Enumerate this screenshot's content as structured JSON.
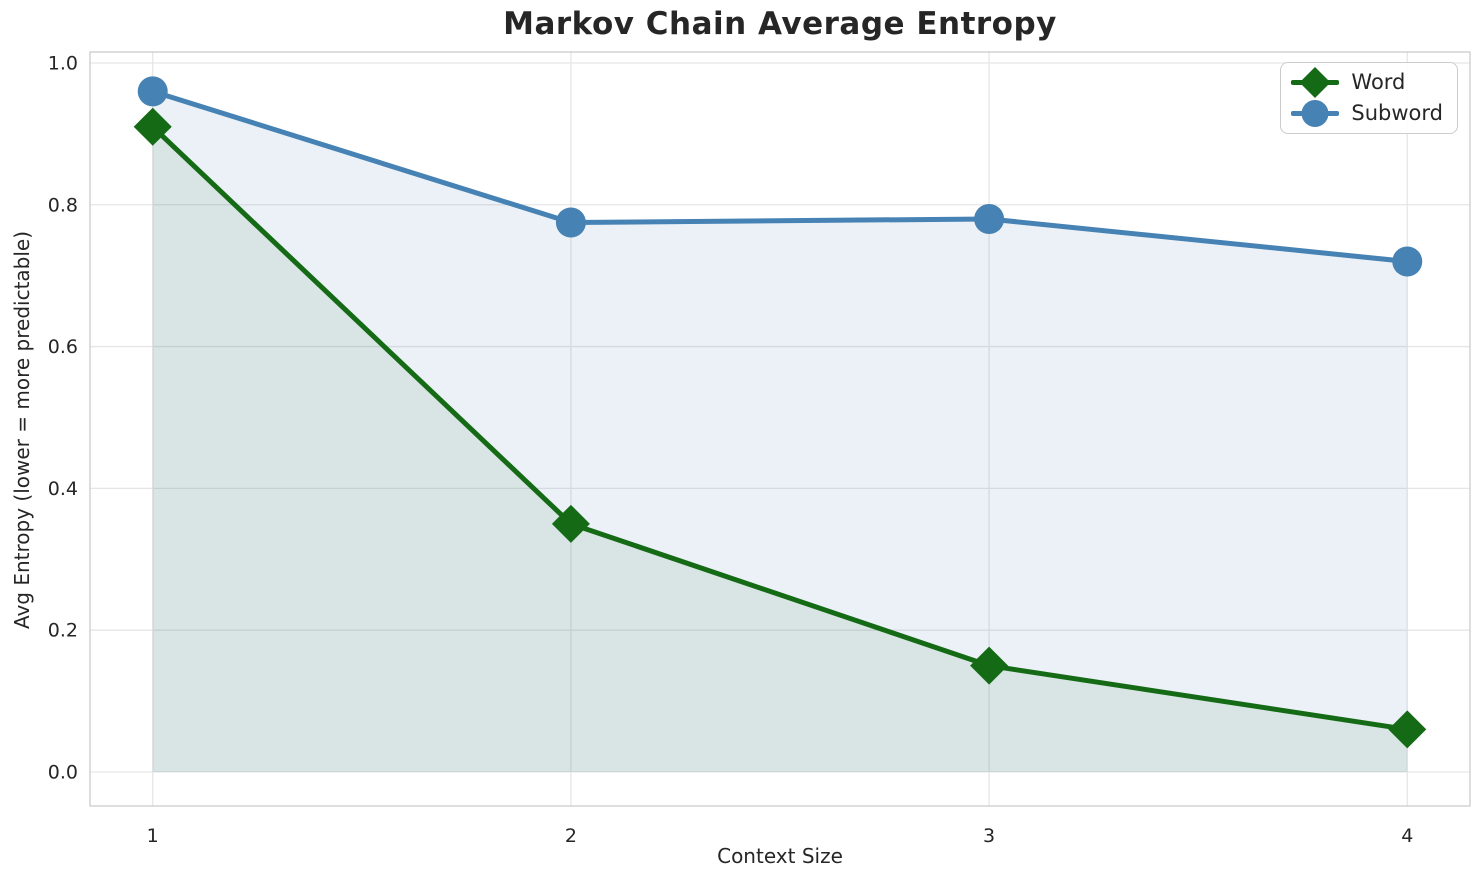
{
  "chart_data": {
    "type": "line",
    "title": "Markov Chain Average Entropy",
    "xlabel": "Context Size",
    "ylabel": "Avg Entropy (lower = more predictable)",
    "x": [
      1,
      2,
      3,
      4
    ],
    "xtick_labels": [
      "1",
      "2",
      "3",
      "4"
    ],
    "yticks": [
      0.0,
      0.2,
      0.4,
      0.6,
      0.8,
      1.0
    ],
    "ytick_labels": [
      "0.0",
      "0.2",
      "0.4",
      "0.6",
      "0.8",
      "1.0"
    ],
    "ylim": [
      0.0,
      1.0
    ],
    "axis_range": {
      "x": [
        0.85,
        4.15
      ],
      "y": [
        -0.048,
        1.0155
      ]
    },
    "grid": true,
    "legend_position": "upper right",
    "grid_color": "#e6e6e6",
    "spine_color": "#cbcbcb",
    "text_color": "#262626",
    "series": [
      {
        "name": "Word",
        "values": [
          0.91,
          0.35,
          0.15,
          0.06
        ],
        "color": "#156b15",
        "fill_color": "rgba(21,107,21,0.09)",
        "marker": "diamond",
        "fill_to_zero": true
      },
      {
        "name": "Subword",
        "values": [
          0.96,
          0.775,
          0.78,
          0.72
        ],
        "color": "#4682b4",
        "fill_color": "rgba(70,130,180,0.11)",
        "marker": "circle",
        "fill_to_zero": true
      }
    ]
  }
}
